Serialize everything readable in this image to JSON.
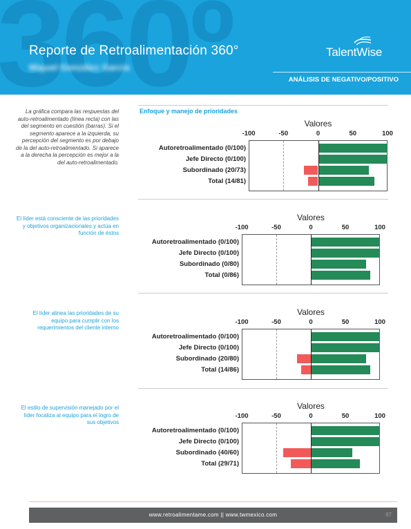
{
  "header": {
    "big_number": "360º",
    "title": "Reporte de Retroalimentación 360°",
    "person_name": "Miguel González García",
    "logo_text": "TalentWise",
    "section": "ANÁLISIS DE NEGATIVO/POSITIVO"
  },
  "colors": {
    "header_bg": "#1aa3dc",
    "positive": "#238a58",
    "negative": "#f25a5a",
    "footer_bg": "#5e6062"
  },
  "intro_text": "La gráfica compara las respuestas del auto-retroalimentado (línea recta) con las del segmento en cuestión (barras). Si el segmento aparece a la izquierda, su percepción del segmento es por debajo de la del auto-retroalimentado. Si aparece a la derecha la percepción es mejor a la del auto-retroalimentado.",
  "block_title": "Enfoque y manejo de prioridades",
  "questions": [
    "El líder está consciente de las prioridades y objetivos organizacionales y actúa en función de éstos",
    "El líder alinea las prioridades de su equipo para cumplir con los requerimientos del cliente interno",
    "El estilo de supervisión manejado por el líder focaliza al equipo para el logro de sus objetivos"
  ],
  "chart_data": [
    {
      "type": "bar",
      "orientation": "horizontal",
      "title": "Valores",
      "xlim": [
        -100,
        100
      ],
      "ticks": [
        "-100",
        "-50",
        "0",
        "50",
        "100"
      ],
      "categories": [
        "Autoretroalimentado (0/100)",
        "Jefe Directo (0/100)",
        "Subordinado (20/73)",
        "Total (14/81)"
      ],
      "series": [
        {
          "values": [
            100,
            100,
            73,
            81
          ]
        },
        {
          "values": [
            0,
            0,
            -20,
            -14
          ]
        }
      ]
    },
    {
      "type": "bar",
      "orientation": "horizontal",
      "title": "Valores",
      "xlim": [
        -100,
        100
      ],
      "ticks": [
        "-100",
        "-50",
        "0",
        "50",
        "100"
      ],
      "categories": [
        "Autoretroalimentado (0/100)",
        "Jefe Directo (0/100)",
        "Subordinado (0/80)",
        "Total (0/86)"
      ],
      "series": [
        {
          "values": [
            100,
            100,
            80,
            86
          ]
        },
        {
          "values": [
            0,
            0,
            0,
            0
          ]
        }
      ]
    },
    {
      "type": "bar",
      "orientation": "horizontal",
      "title": "Valores",
      "xlim": [
        -100,
        100
      ],
      "ticks": [
        "-100",
        "-50",
        "0",
        "50",
        "100"
      ],
      "categories": [
        "Autoretroalimentado (0/100)",
        "Jefe Directo (0/100)",
        "Subordinado (20/80)",
        "Total (14/86)"
      ],
      "series": [
        {
          "values": [
            100,
            100,
            80,
            86
          ]
        },
        {
          "values": [
            0,
            0,
            -20,
            -14
          ]
        }
      ]
    },
    {
      "type": "bar",
      "orientation": "horizontal",
      "title": "Valores",
      "xlim": [
        -100,
        100
      ],
      "ticks": [
        "-100",
        "-50",
        "0",
        "50",
        "100"
      ],
      "categories": [
        "Autoretroalimentado (0/100)",
        "Jefe Directo (0/100)",
        "Subordinado (40/60)",
        "Total (29/71)"
      ],
      "series": [
        {
          "values": [
            100,
            100,
            60,
            71
          ]
        },
        {
          "values": [
            0,
            0,
            -40,
            -29
          ]
        }
      ]
    }
  ],
  "footer": {
    "text": "www.retroalimentame.com   ||   www.twmexico.com",
    "page_number": "97"
  }
}
